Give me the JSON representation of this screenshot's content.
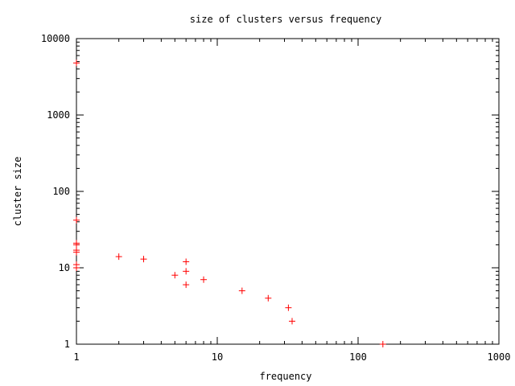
{
  "chart_data": {
    "type": "scatter",
    "title": "size of clusters versus frequency",
    "xlabel": "frequency",
    "ylabel": "cluster size",
    "xscale": "log",
    "yscale": "log",
    "xlim": [
      1,
      1000
    ],
    "ylim": [
      1,
      10000
    ],
    "xticks": [
      "1",
      "10",
      "100",
      "1000"
    ],
    "yticks": [
      "1",
      "10",
      "100",
      "1000",
      "10000"
    ],
    "grid": false,
    "legend": null,
    "marker": "+",
    "color": "#ff0000",
    "series": [
      {
        "name": "clusters",
        "points": [
          {
            "x": 1,
            "y": 4800
          },
          {
            "x": 1,
            "y": 42
          },
          {
            "x": 1,
            "y": 21
          },
          {
            "x": 1,
            "y": 20
          },
          {
            "x": 1,
            "y": 17
          },
          {
            "x": 1,
            "y": 16
          },
          {
            "x": 1,
            "y": 11
          },
          {
            "x": 1,
            "y": 10
          },
          {
            "x": 2,
            "y": 14
          },
          {
            "x": 3,
            "y": 13
          },
          {
            "x": 5,
            "y": 8
          },
          {
            "x": 6,
            "y": 12
          },
          {
            "x": 6,
            "y": 9
          },
          {
            "x": 6,
            "y": 6
          },
          {
            "x": 8,
            "y": 7
          },
          {
            "x": 15,
            "y": 5
          },
          {
            "x": 23,
            "y": 4
          },
          {
            "x": 32,
            "y": 3
          },
          {
            "x": 34,
            "y": 2
          },
          {
            "x": 150,
            "y": 1
          }
        ]
      }
    ]
  }
}
